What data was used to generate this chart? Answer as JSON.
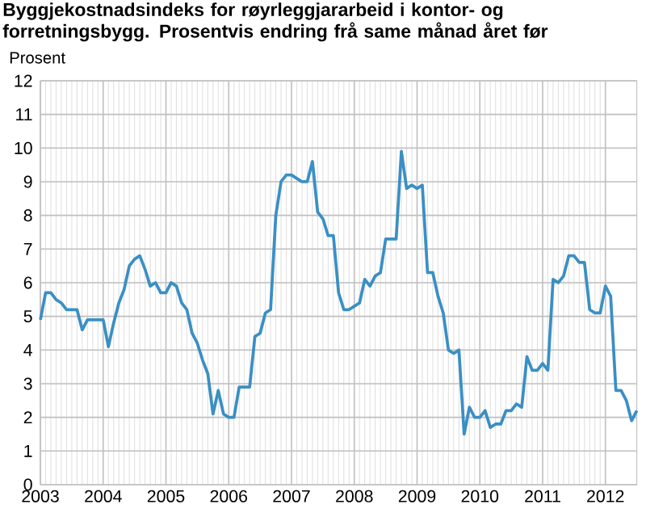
{
  "chart_data": {
    "type": "line",
    "title": "Byggjekostnadsindeks for røyrleggjararbeid i kontor- og forretningsbygg. Prosentvis endring frå same månad året før",
    "ylabel": "Prosent",
    "x": [
      "2003-01",
      "2003-02",
      "2003-03",
      "2003-04",
      "2003-05",
      "2003-06",
      "2003-07",
      "2003-08",
      "2003-09",
      "2003-10",
      "2003-11",
      "2003-12",
      "2004-01",
      "2004-02",
      "2004-03",
      "2004-04",
      "2004-05",
      "2004-06",
      "2004-07",
      "2004-08",
      "2004-09",
      "2004-10",
      "2004-11",
      "2004-12",
      "2005-01",
      "2005-02",
      "2005-03",
      "2005-04",
      "2005-05",
      "2005-06",
      "2005-07",
      "2005-08",
      "2005-09",
      "2005-10",
      "2005-11",
      "2005-12",
      "2006-01",
      "2006-02",
      "2006-03",
      "2006-04",
      "2006-05",
      "2006-06",
      "2006-07",
      "2006-08",
      "2006-09",
      "2006-10",
      "2006-11",
      "2006-12",
      "2007-01",
      "2007-02",
      "2007-03",
      "2007-04",
      "2007-05",
      "2007-06",
      "2007-07",
      "2007-08",
      "2007-09",
      "2007-10",
      "2007-11",
      "2007-12",
      "2008-01",
      "2008-02",
      "2008-03",
      "2008-04",
      "2008-05",
      "2008-06",
      "2008-07",
      "2008-08",
      "2008-09",
      "2008-10",
      "2008-11",
      "2008-12",
      "2009-01",
      "2009-02",
      "2009-03",
      "2009-04",
      "2009-05",
      "2009-06",
      "2009-07",
      "2009-08",
      "2009-09",
      "2009-10",
      "2009-11",
      "2009-12",
      "2010-01",
      "2010-02",
      "2010-03",
      "2010-04",
      "2010-05",
      "2010-06",
      "2010-07",
      "2010-08",
      "2010-09",
      "2010-10",
      "2010-11",
      "2010-12",
      "2011-01",
      "2011-02",
      "2011-03",
      "2011-04",
      "2011-05",
      "2011-06",
      "2011-07",
      "2011-08",
      "2011-09",
      "2011-10",
      "2011-11",
      "2011-12",
      "2012-01",
      "2012-02",
      "2012-03",
      "2012-04",
      "2012-05",
      "2012-06",
      "2012-07"
    ],
    "series": [
      {
        "color": "#3a8fc4",
        "values": [
          4.9,
          5.7,
          5.7,
          5.5,
          5.4,
          5.2,
          5.2,
          5.2,
          4.6,
          4.9,
          4.9,
          4.9,
          4.9,
          4.1,
          4.8,
          5.4,
          5.8,
          6.5,
          6.7,
          6.8,
          6.4,
          5.9,
          6.0,
          5.7,
          5.7,
          6.0,
          5.9,
          5.4,
          5.2,
          4.5,
          4.2,
          3.7,
          3.3,
          2.1,
          2.8,
          2.1,
          2.0,
          2.0,
          2.9,
          2.9,
          2.9,
          4.4,
          4.5,
          5.1,
          5.2,
          8.0,
          9.0,
          9.2,
          9.2,
          9.1,
          9.0,
          9.0,
          9.6,
          8.1,
          7.9,
          7.4,
          7.4,
          5.7,
          5.2,
          5.2,
          5.3,
          5.4,
          6.1,
          5.9,
          6.2,
          6.3,
          7.3,
          7.3,
          7.3,
          9.9,
          8.8,
          8.9,
          8.8,
          8.9,
          6.3,
          6.3,
          5.6,
          5.1,
          4.0,
          3.9,
          4.0,
          1.5,
          2.3,
          2.0,
          2.0,
          2.2,
          1.7,
          1.8,
          1.8,
          2.2,
          2.2,
          2.4,
          2.3,
          3.8,
          3.4,
          3.4,
          3.6,
          3.4,
          6.1,
          6.0,
          6.2,
          6.8,
          6.8,
          6.6,
          6.6,
          5.2,
          5.1,
          5.1,
          5.9,
          5.6,
          2.8,
          2.8,
          2.5,
          1.9,
          2.2
        ]
      }
    ],
    "xlim": [
      "2003-01",
      "2012-07"
    ],
    "xticks": [
      "2003",
      "2004",
      "2005",
      "2006",
      "2007",
      "2008",
      "2009",
      "2010",
      "2011",
      "2012"
    ],
    "ylim": [
      0,
      12
    ],
    "yticks": [
      0,
      1,
      2,
      3,
      4,
      5,
      6,
      7,
      8,
      9,
      10,
      11,
      12
    ],
    "grid": true,
    "legend": false,
    "marker": "none",
    "line_style": "solid"
  }
}
